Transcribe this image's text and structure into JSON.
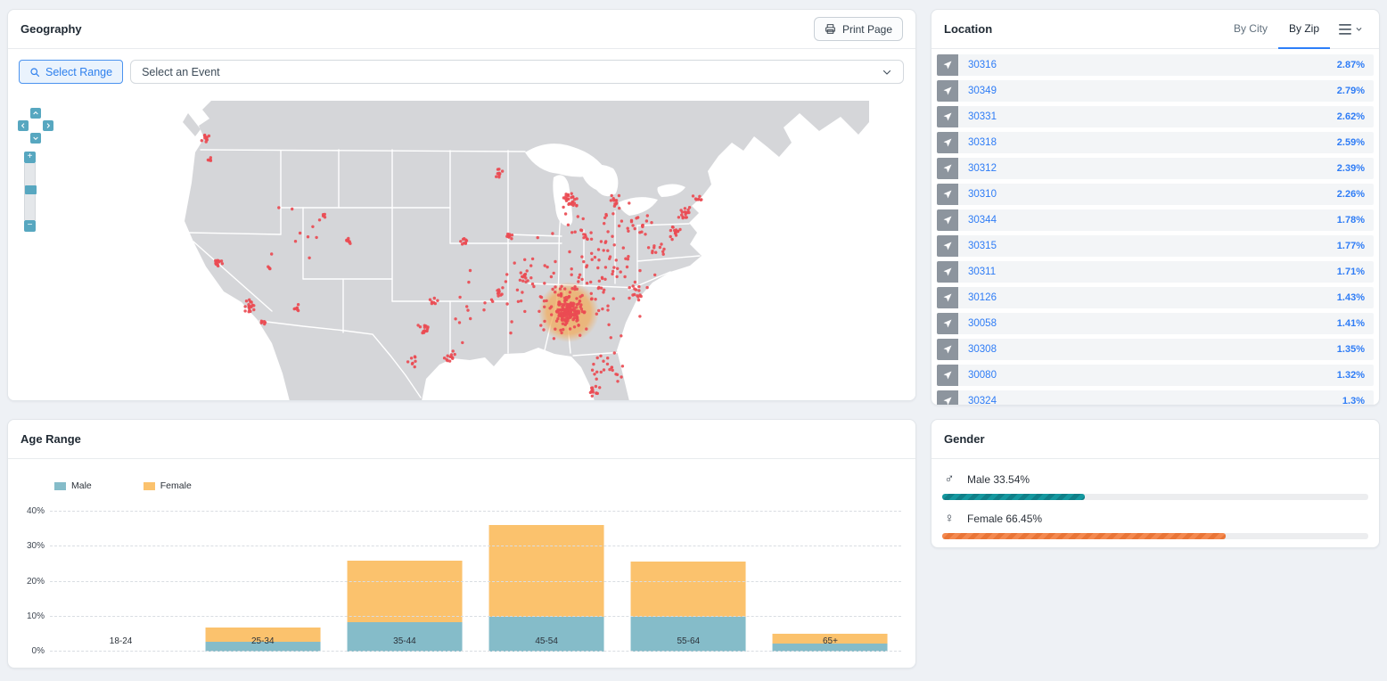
{
  "geography": {
    "title": "Geography",
    "print_button_label": "Print Page",
    "select_range_label": "Select Range",
    "event_select_value": "Select an Event",
    "map": {
      "land_color": "#d5d6d9",
      "state_border_color": "#ffffff",
      "dot_color": "#ea4b52",
      "halo_color": "#f0ae63",
      "control_color": "#57a7c0"
    }
  },
  "location": {
    "title": "Location",
    "tabs": [
      {
        "label": "By City",
        "active": false
      },
      {
        "label": "By Zip",
        "active": true
      }
    ],
    "rows": [
      {
        "zip": "30316",
        "pct": "2.87%"
      },
      {
        "zip": "30349",
        "pct": "2.79%"
      },
      {
        "zip": "30331",
        "pct": "2.62%"
      },
      {
        "zip": "30318",
        "pct": "2.59%"
      },
      {
        "zip": "30312",
        "pct": "2.39%"
      },
      {
        "zip": "30310",
        "pct": "2.26%"
      },
      {
        "zip": "30344",
        "pct": "1.78%"
      },
      {
        "zip": "30315",
        "pct": "1.77%"
      },
      {
        "zip": "30311",
        "pct": "1.71%"
      },
      {
        "zip": "30126",
        "pct": "1.43%"
      },
      {
        "zip": "30058",
        "pct": "1.41%"
      },
      {
        "zip": "30308",
        "pct": "1.35%"
      },
      {
        "zip": "30080",
        "pct": "1.32%"
      },
      {
        "zip": "30324",
        "pct": "1.3%"
      }
    ]
  },
  "age_range": {
    "title": "Age Range"
  },
  "gender": {
    "title": "Gender",
    "male_label": "Male 33.54%",
    "female_label": "Female 66.45%"
  },
  "chart_data": [
    {
      "type": "bar",
      "title": "Age Range",
      "stacked": true,
      "categories": [
        "18-24",
        "25-34",
        "35-44",
        "45-54",
        "55-64",
        "65+"
      ],
      "series": [
        {
          "name": "Male",
          "color": "#85bcc9",
          "values": [
            0,
            2.7,
            8.4,
            9.9,
            9.9,
            2.3
          ]
        },
        {
          "name": "Female",
          "color": "#fbc26d",
          "values": [
            0,
            4.2,
            17.5,
            26.4,
            15.9,
            2.9
          ]
        }
      ],
      "ylim": [
        0,
        40
      ],
      "yticks": [
        0,
        10,
        20,
        30,
        40
      ],
      "ytick_labels": [
        "0%",
        "10%",
        "20%",
        "30%",
        "40%"
      ],
      "grid": "dashed-horizontal",
      "legend_position": "top-left"
    },
    {
      "type": "bar",
      "title": "Gender",
      "categories": [
        "Male",
        "Female"
      ],
      "values": [
        33.54,
        66.45
      ],
      "colors": [
        "#14989f",
        "#f4894f"
      ],
      "xlim": [
        0,
        100
      ]
    },
    {
      "type": "scatter",
      "title": "Geography map (USA)",
      "hotspot": "Atlanta, GA metro (orange halo)",
      "point_color": "#ea4b52",
      "halo": {
        "cx": 463,
        "cy": 237,
        "r": 34
      },
      "clusters": [
        {
          "cx": 463,
          "cy": 237,
          "n": 130,
          "s": 16
        },
        {
          "cx": 463,
          "cy": 237,
          "n": 60,
          "s": 38
        },
        {
          "cx": 470,
          "cy": 195,
          "n": 50,
          "s": 85
        },
        {
          "cx": 505,
          "cy": 300,
          "n": 22,
          "s": 22
        },
        {
          "cx": 492,
          "cy": 328,
          "n": 14,
          "s": 10
        },
        {
          "cx": 540,
          "cy": 215,
          "n": 12,
          "s": 12
        },
        {
          "cx": 593,
          "cy": 126,
          "n": 16,
          "s": 8
        },
        {
          "cx": 580,
          "cy": 148,
          "n": 14,
          "s": 9
        },
        {
          "cx": 606,
          "cy": 108,
          "n": 8,
          "s": 7
        },
        {
          "cx": 560,
          "cy": 170,
          "n": 10,
          "s": 12
        },
        {
          "cx": 465,
          "cy": 112,
          "n": 26,
          "s": 9
        },
        {
          "cx": 515,
          "cy": 112,
          "n": 10,
          "s": 7
        },
        {
          "cx": 540,
          "cy": 140,
          "n": 16,
          "s": 16
        },
        {
          "cx": 480,
          "cy": 150,
          "n": 10,
          "s": 10
        },
        {
          "cx": 415,
          "cy": 197,
          "n": 12,
          "s": 8
        },
        {
          "cx": 385,
          "cy": 215,
          "n": 8,
          "s": 5
        },
        {
          "cx": 300,
          "cy": 257,
          "n": 14,
          "s": 7
        },
        {
          "cx": 330,
          "cy": 287,
          "n": 12,
          "s": 7
        },
        {
          "cx": 288,
          "cy": 292,
          "n": 8,
          "s": 8
        },
        {
          "cx": 385,
          "cy": 80,
          "n": 10,
          "s": 7
        },
        {
          "cx": 345,
          "cy": 157,
          "n": 9,
          "s": 6
        },
        {
          "cx": 398,
          "cy": 152,
          "n": 9,
          "s": 5
        },
        {
          "cx": 215,
          "cy": 157,
          "n": 10,
          "s": 5
        },
        {
          "cx": 312,
          "cy": 225,
          "n": 7,
          "s": 6
        },
        {
          "cx": 55,
          "cy": 42,
          "n": 12,
          "s": 5
        },
        {
          "cx": 60,
          "cy": 65,
          "n": 6,
          "s": 4
        },
        {
          "cx": 70,
          "cy": 182,
          "n": 14,
          "s": 7
        },
        {
          "cx": 105,
          "cy": 230,
          "n": 18,
          "s": 8
        },
        {
          "cx": 120,
          "cy": 248,
          "n": 6,
          "s": 3
        },
        {
          "cx": 128,
          "cy": 188,
          "n": 4,
          "s": 3
        },
        {
          "cx": 158,
          "cy": 232,
          "n": 7,
          "s": 5
        },
        {
          "cx": 188,
          "cy": 130,
          "n": 4,
          "s": 3
        },
        {
          "cx": 500,
          "cy": 175,
          "n": 60,
          "s": 70
        },
        {
          "cx": 380,
          "cy": 230,
          "n": 25,
          "s": 55
        },
        {
          "cx": 160,
          "cy": 150,
          "n": 10,
          "s": 60
        }
      ]
    }
  ]
}
